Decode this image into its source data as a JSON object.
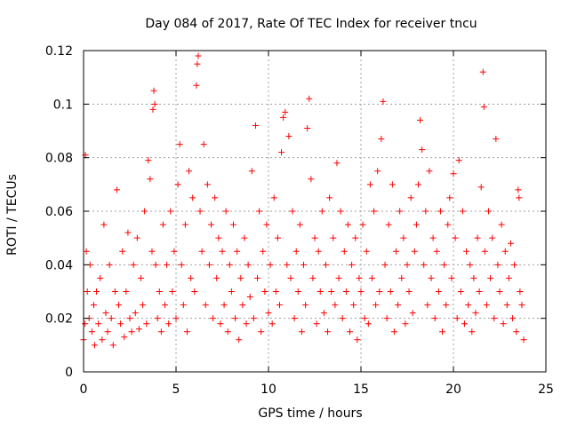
{
  "chart_data": {
    "type": "scatter",
    "title": "Day 084 of 2017, Rate Of TEC Index for receiver tncu",
    "xlabel": "GPS time / hours",
    "ylabel": "ROTI / TECUs",
    "xlim": [
      0,
      25
    ],
    "ylim": [
      0,
      0.12
    ],
    "xticks": [
      0,
      5,
      10,
      15,
      20,
      25
    ],
    "xtick_labels": [
      "0",
      "5",
      "10",
      "15",
      "20",
      "25"
    ],
    "yticks": [
      0,
      0.02,
      0.04,
      0.06,
      0.08,
      0.1,
      0.12
    ],
    "ytick_labels": [
      "0",
      "0.02",
      "0.04",
      "0.06",
      "0.08",
      "0.1",
      "0.12"
    ],
    "grid": true,
    "marker": "+",
    "color": "#ff0000",
    "series": [
      {
        "points": [
          [
            0.0,
            0.012
          ],
          [
            0.08,
            0.018
          ],
          [
            0.1,
            0.081
          ],
          [
            0.15,
            0.045
          ],
          [
            0.2,
            0.03
          ],
          [
            0.3,
            0.02
          ],
          [
            0.35,
            0.04
          ],
          [
            0.45,
            0.015
          ],
          [
            0.55,
            0.025
          ],
          [
            0.6,
            0.01
          ],
          [
            0.7,
            0.03
          ],
          [
            0.8,
            0.018
          ],
          [
            0.9,
            0.035
          ],
          [
            1.0,
            0.012
          ],
          [
            1.1,
            0.055
          ],
          [
            1.2,
            0.022
          ],
          [
            1.3,
            0.015
          ],
          [
            1.4,
            0.04
          ],
          [
            1.5,
            0.02
          ],
          [
            1.6,
            0.01
          ],
          [
            1.7,
            0.03
          ],
          [
            1.8,
            0.068
          ],
          [
            1.9,
            0.025
          ],
          [
            2.0,
            0.018
          ],
          [
            2.1,
            0.045
          ],
          [
            2.2,
            0.013
          ],
          [
            2.3,
            0.03
          ],
          [
            2.4,
            0.052
          ],
          [
            2.5,
            0.02
          ],
          [
            2.6,
            0.015
          ],
          [
            2.7,
            0.04
          ],
          [
            2.8,
            0.022
          ],
          [
            2.9,
            0.05
          ],
          [
            3.0,
            0.016
          ],
          [
            3.1,
            0.035
          ],
          [
            3.2,
            0.025
          ],
          [
            3.3,
            0.06
          ],
          [
            3.4,
            0.018
          ],
          [
            3.5,
            0.079
          ],
          [
            3.6,
            0.072
          ],
          [
            3.7,
            0.045
          ],
          [
            3.75,
            0.098
          ],
          [
            3.8,
            0.105
          ],
          [
            3.85,
            0.1
          ],
          [
            3.9,
            0.04
          ],
          [
            4.0,
            0.02
          ],
          [
            4.1,
            0.03
          ],
          [
            4.2,
            0.015
          ],
          [
            4.3,
            0.055
          ],
          [
            4.4,
            0.025
          ],
          [
            4.5,
            0.04
          ],
          [
            4.6,
            0.018
          ],
          [
            4.7,
            0.06
          ],
          [
            4.8,
            0.03
          ],
          [
            4.9,
            0.045
          ],
          [
            5.0,
            0.02
          ],
          [
            5.1,
            0.07
          ],
          [
            5.2,
            0.085
          ],
          [
            5.3,
            0.04
          ],
          [
            5.4,
            0.025
          ],
          [
            5.5,
            0.055
          ],
          [
            5.6,
            0.015
          ],
          [
            5.7,
            0.075
          ],
          [
            5.8,
            0.035
          ],
          [
            5.9,
            0.065
          ],
          [
            6.0,
            0.03
          ],
          [
            6.1,
            0.107
          ],
          [
            6.15,
            0.115
          ],
          [
            6.2,
            0.118
          ],
          [
            6.3,
            0.06
          ],
          [
            6.4,
            0.045
          ],
          [
            6.5,
            0.085
          ],
          [
            6.6,
            0.025
          ],
          [
            6.7,
            0.07
          ],
          [
            6.8,
            0.04
          ],
          [
            6.9,
            0.055
          ],
          [
            7.0,
            0.02
          ],
          [
            7.1,
            0.065
          ],
          [
            7.2,
            0.035
          ],
          [
            7.3,
            0.05
          ],
          [
            7.4,
            0.018
          ],
          [
            7.5,
            0.045
          ],
          [
            7.6,
            0.025
          ],
          [
            7.7,
            0.06
          ],
          [
            7.8,
            0.015
          ],
          [
            7.9,
            0.04
          ],
          [
            8.0,
            0.03
          ],
          [
            8.1,
            0.055
          ],
          [
            8.2,
            0.02
          ],
          [
            8.3,
            0.045
          ],
          [
            8.4,
            0.012
          ],
          [
            8.5,
            0.035
          ],
          [
            8.6,
            0.025
          ],
          [
            8.7,
            0.05
          ],
          [
            8.8,
            0.018
          ],
          [
            8.9,
            0.04
          ],
          [
            9.0,
            0.028
          ],
          [
            9.1,
            0.075
          ],
          [
            9.2,
            0.02
          ],
          [
            9.3,
            0.092
          ],
          [
            9.4,
            0.035
          ],
          [
            9.5,
            0.06
          ],
          [
            9.6,
            0.015
          ],
          [
            9.7,
            0.045
          ],
          [
            9.8,
            0.03
          ],
          [
            9.9,
            0.055
          ],
          [
            10.0,
            0.022
          ],
          [
            10.1,
            0.04
          ],
          [
            10.2,
            0.018
          ],
          [
            10.3,
            0.065
          ],
          [
            10.4,
            0.03
          ],
          [
            10.5,
            0.05
          ],
          [
            10.6,
            0.025
          ],
          [
            10.7,
            0.082
          ],
          [
            10.8,
            0.095
          ],
          [
            10.9,
            0.097
          ],
          [
            11.0,
            0.04
          ],
          [
            11.1,
            0.088
          ],
          [
            11.2,
            0.035
          ],
          [
            11.3,
            0.06
          ],
          [
            11.4,
            0.02
          ],
          [
            11.5,
            0.045
          ],
          [
            11.6,
            0.03
          ],
          [
            11.7,
            0.055
          ],
          [
            11.8,
            0.015
          ],
          [
            11.9,
            0.04
          ],
          [
            12.0,
            0.025
          ],
          [
            12.1,
            0.091
          ],
          [
            12.2,
            0.102
          ],
          [
            12.3,
            0.072
          ],
          [
            12.4,
            0.035
          ],
          [
            12.5,
            0.05
          ],
          [
            12.6,
            0.018
          ],
          [
            12.7,
            0.045
          ],
          [
            12.8,
            0.03
          ],
          [
            12.9,
            0.06
          ],
          [
            13.0,
            0.022
          ],
          [
            13.1,
            0.04
          ],
          [
            13.2,
            0.015
          ],
          [
            13.3,
            0.065
          ],
          [
            13.4,
            0.03
          ],
          [
            13.5,
            0.05
          ],
          [
            13.6,
            0.025
          ],
          [
            13.7,
            0.078
          ],
          [
            13.8,
            0.035
          ],
          [
            13.9,
            0.06
          ],
          [
            14.0,
            0.02
          ],
          [
            14.1,
            0.045
          ],
          [
            14.2,
            0.03
          ],
          [
            14.3,
            0.055
          ],
          [
            14.4,
            0.015
          ],
          [
            14.5,
            0.04
          ],
          [
            14.6,
            0.025
          ],
          [
            14.7,
            0.05
          ],
          [
            14.8,
            0.012
          ],
          [
            14.9,
            0.035
          ],
          [
            15.0,
            0.03
          ],
          [
            15.1,
            0.055
          ],
          [
            15.2,
            0.02
          ],
          [
            15.3,
            0.045
          ],
          [
            15.4,
            0.018
          ],
          [
            15.5,
            0.07
          ],
          [
            15.6,
            0.035
          ],
          [
            15.7,
            0.06
          ],
          [
            15.8,
            0.025
          ],
          [
            15.9,
            0.075
          ],
          [
            16.0,
            0.03
          ],
          [
            16.1,
            0.087
          ],
          [
            16.2,
            0.101
          ],
          [
            16.3,
            0.04
          ],
          [
            16.4,
            0.02
          ],
          [
            16.5,
            0.055
          ],
          [
            16.6,
            0.03
          ],
          [
            16.7,
            0.07
          ],
          [
            16.8,
            0.015
          ],
          [
            16.9,
            0.045
          ],
          [
            17.0,
            0.025
          ],
          [
            17.1,
            0.06
          ],
          [
            17.2,
            0.035
          ],
          [
            17.3,
            0.05
          ],
          [
            17.4,
            0.018
          ],
          [
            17.5,
            0.04
          ],
          [
            17.6,
            0.03
          ],
          [
            17.7,
            0.065
          ],
          [
            17.8,
            0.022
          ],
          [
            17.9,
            0.045
          ],
          [
            18.0,
            0.055
          ],
          [
            18.1,
            0.07
          ],
          [
            18.2,
            0.094
          ],
          [
            18.3,
            0.083
          ],
          [
            18.4,
            0.04
          ],
          [
            18.5,
            0.06
          ],
          [
            18.6,
            0.025
          ],
          [
            18.7,
            0.075
          ],
          [
            18.8,
            0.035
          ],
          [
            18.9,
            0.05
          ],
          [
            19.0,
            0.02
          ],
          [
            19.1,
            0.045
          ],
          [
            19.2,
            0.03
          ],
          [
            19.3,
            0.06
          ],
          [
            19.4,
            0.015
          ],
          [
            19.5,
            0.04
          ],
          [
            19.6,
            0.025
          ],
          [
            19.7,
            0.055
          ],
          [
            19.8,
            0.065
          ],
          [
            19.9,
            0.035
          ],
          [
            20.0,
            0.074
          ],
          [
            20.1,
            0.05
          ],
          [
            20.2,
            0.02
          ],
          [
            20.3,
            0.079
          ],
          [
            20.4,
            0.03
          ],
          [
            20.5,
            0.06
          ],
          [
            20.6,
            0.018
          ],
          [
            20.7,
            0.045
          ],
          [
            20.8,
            0.025
          ],
          [
            20.9,
            0.04
          ],
          [
            21.0,
            0.015
          ],
          [
            21.1,
            0.035
          ],
          [
            21.2,
            0.022
          ],
          [
            21.3,
            0.05
          ],
          [
            21.4,
            0.03
          ],
          [
            21.5,
            0.069
          ],
          [
            21.6,
            0.112
          ],
          [
            21.65,
            0.099
          ],
          [
            21.7,
            0.045
          ],
          [
            21.8,
            0.025
          ],
          [
            21.9,
            0.06
          ],
          [
            22.0,
            0.035
          ],
          [
            22.1,
            0.05
          ],
          [
            22.2,
            0.02
          ],
          [
            22.3,
            0.087
          ],
          [
            22.4,
            0.04
          ],
          [
            22.5,
            0.03
          ],
          [
            22.6,
            0.055
          ],
          [
            22.7,
            0.018
          ],
          [
            22.8,
            0.045
          ],
          [
            22.9,
            0.025
          ],
          [
            23.0,
            0.035
          ],
          [
            23.1,
            0.048
          ],
          [
            23.2,
            0.02
          ],
          [
            23.3,
            0.04
          ],
          [
            23.4,
            0.015
          ],
          [
            23.5,
            0.068
          ],
          [
            23.55,
            0.065
          ],
          [
            23.6,
            0.03
          ],
          [
            23.7,
            0.025
          ],
          [
            23.8,
            0.012
          ]
        ]
      }
    ]
  }
}
